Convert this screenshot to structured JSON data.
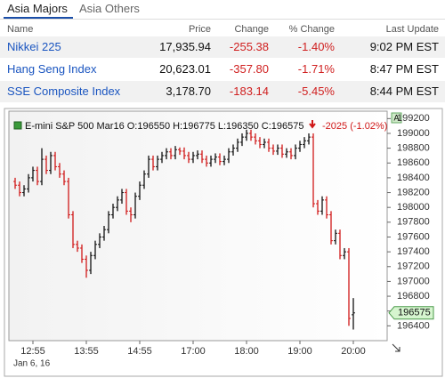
{
  "tabs": [
    "Asia Majors",
    "Asia Others"
  ],
  "table": {
    "headers": [
      "Name",
      "Price",
      "Change",
      "% Change",
      "Last Update"
    ],
    "rows": [
      [
        "Nikkei 225",
        "17,935.94",
        "-255.38",
        "-1.40%",
        "9:02 PM EST"
      ],
      [
        "Hang Seng Index",
        "20,623.01",
        "-357.80",
        "-1.71%",
        "8:47 PM EST"
      ],
      [
        "SSE Composite Index",
        "3,178.70",
        "-183.14",
        "-5.45%",
        "8:44 PM EST"
      ]
    ]
  },
  "chart": {
    "type": "ohlc",
    "title": "E-mini S&P 500 Mar16 O:196550 H:196775 L:196350 C:196575",
    "change": "-2025 (-1.02%)",
    "date_label": "Jan 6, 16",
    "scale_button": "A",
    "last_price": 196575,
    "up_color": "#111111",
    "down_color": "#d01818",
    "grid": false,
    "ylim": [
      196200,
      199300
    ],
    "yticks": [
      196400,
      196600,
      196800,
      197000,
      197200,
      197400,
      197600,
      197800,
      198000,
      198200,
      198400,
      198600,
      198800,
      199000,
      199200
    ],
    "xlim": [
      -1.4,
      83.6
    ],
    "xticks": [
      {
        "value": 4,
        "label": "12:55"
      },
      {
        "value": 16,
        "label": "13:55"
      },
      {
        "value": 28,
        "label": "14:55"
      },
      {
        "value": 40,
        "label": "17:00"
      },
      {
        "value": 52,
        "label": "18:00"
      },
      {
        "value": 64,
        "label": "19:00"
      },
      {
        "value": 76,
        "label": "20:00"
      }
    ],
    "bars": [
      [
        198350,
        198400,
        198250,
        198300
      ],
      [
        198300,
        198350,
        198150,
        198200
      ],
      [
        198200,
        198300,
        198150,
        198250
      ],
      [
        198250,
        198450,
        198200,
        198400
      ],
      [
        198400,
        198550,
        198350,
        198500
      ],
      [
        198500,
        198550,
        198300,
        198350
      ],
      [
        198350,
        198800,
        198300,
        198650
      ],
      [
        198650,
        198700,
        198450,
        198500
      ],
      [
        198500,
        198750,
        198450,
        198700
      ],
      [
        198700,
        198750,
        198500,
        198550
      ],
      [
        198550,
        198600,
        198400,
        198450
      ],
      [
        198450,
        198500,
        198300,
        198350
      ],
      [
        198350,
        198400,
        197850,
        197900
      ],
      [
        197900,
        197950,
        197450,
        197500
      ],
      [
        197500,
        197550,
        197400,
        197450
      ],
      [
        197450,
        197500,
        197250,
        197300
      ],
      [
        197300,
        197350,
        197050,
        197150
      ],
      [
        197150,
        197400,
        197100,
        197350
      ],
      [
        197350,
        197550,
        197300,
        197500
      ],
      [
        197500,
        197650,
        197450,
        197600
      ],
      [
        197600,
        197750,
        197550,
        197700
      ],
      [
        197700,
        197950,
        197650,
        197900
      ],
      [
        197900,
        198050,
        197850,
        198000
      ],
      [
        198000,
        198150,
        197950,
        198100
      ],
      [
        198100,
        198250,
        198050,
        198200
      ],
      [
        198200,
        198250,
        197900,
        197950
      ],
      [
        197950,
        198000,
        197800,
        197900
      ],
      [
        197900,
        198200,
        197850,
        198150
      ],
      [
        198150,
        198350,
        198100,
        198300
      ],
      [
        198300,
        198500,
        198250,
        198450
      ],
      [
        198450,
        198700,
        198400,
        198650
      ],
      [
        198650,
        198700,
        198500,
        198550
      ],
      [
        198550,
        198700,
        198500,
        198650
      ],
      [
        198650,
        198750,
        198600,
        198700
      ],
      [
        198700,
        198800,
        198650,
        198750
      ],
      [
        198750,
        198800,
        198650,
        198700
      ],
      [
        198700,
        198830,
        198650,
        198780
      ],
      [
        198780,
        198810,
        198710,
        198760
      ],
      [
        198760,
        198810,
        198650,
        198700
      ],
      [
        198700,
        198750,
        198600,
        198650
      ],
      [
        198650,
        198750,
        198600,
        198700
      ],
      [
        198700,
        198770,
        198650,
        198720
      ],
      [
        198720,
        198770,
        198600,
        198650
      ],
      [
        198650,
        198700,
        198550,
        198600
      ],
      [
        198600,
        198700,
        198550,
        198650
      ],
      [
        198650,
        198730,
        198600,
        198680
      ],
      [
        198680,
        198730,
        198570,
        198620
      ],
      [
        198620,
        198700,
        198570,
        198650
      ],
      [
        198650,
        198800,
        198600,
        198750
      ],
      [
        198750,
        198850,
        198700,
        198800
      ],
      [
        198800,
        198930,
        198750,
        198880
      ],
      [
        198880,
        199000,
        198830,
        198950
      ],
      [
        198950,
        199050,
        198900,
        199000
      ],
      [
        199000,
        199050,
        198900,
        198950
      ],
      [
        198950,
        199000,
        198850,
        198900
      ],
      [
        198900,
        198950,
        198800,
        198850
      ],
      [
        198850,
        198930,
        198800,
        198880
      ],
      [
        198880,
        198930,
        198750,
        198800
      ],
      [
        198800,
        198850,
        198710,
        198760
      ],
      [
        198760,
        198850,
        198710,
        198800
      ],
      [
        198800,
        198850,
        198670,
        198720
      ],
      [
        198720,
        198800,
        198670,
        198750
      ],
      [
        198750,
        198800,
        198650,
        198700
      ],
      [
        198700,
        198850,
        198650,
        198800
      ],
      [
        198800,
        198900,
        198750,
        198850
      ],
      [
        198850,
        198950,
        198800,
        198900
      ],
      [
        198900,
        199000,
        198850,
        198950
      ],
      [
        198950,
        199000,
        198000,
        198050
      ],
      [
        198050,
        198100,
        197900,
        197950
      ],
      [
        197950,
        198150,
        197900,
        198100
      ],
      [
        198100,
        198150,
        197850,
        197900
      ],
      [
        197900,
        197950,
        197500,
        197550
      ],
      [
        197550,
        197700,
        197500,
        197650
      ],
      [
        197650,
        197700,
        197300,
        197350
      ],
      [
        197350,
        197450,
        197300,
        197400
      ],
      [
        197400,
        197450,
        196400,
        196500
      ],
      [
        196550,
        196775,
        196350,
        196575
      ]
    ]
  }
}
